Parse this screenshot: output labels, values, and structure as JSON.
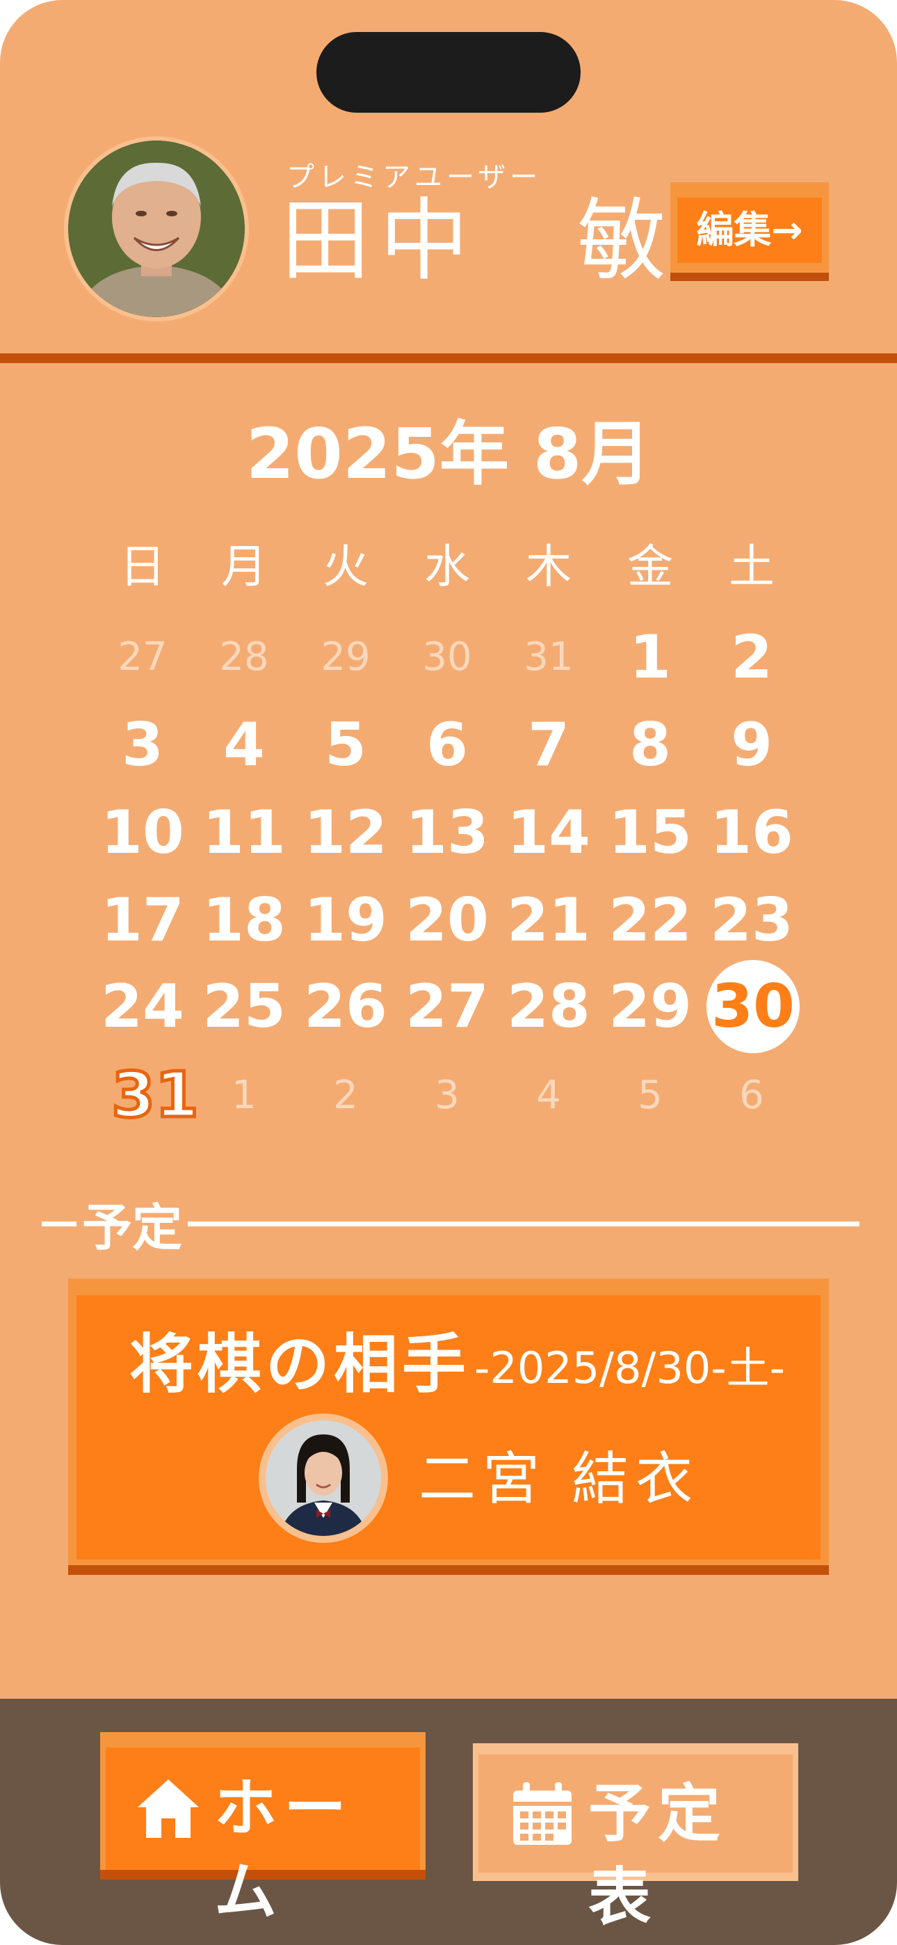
{
  "header": {
    "badge": "プレミアユーザー",
    "user_name": "田中　敏三",
    "edit_label": "編集→"
  },
  "calendar": {
    "month_title": "2025年 8月",
    "weekdays": [
      "日",
      "月",
      "火",
      "水",
      "木",
      "金",
      "土"
    ],
    "weeks": [
      [
        "27",
        "28",
        "29",
        "30",
        "31",
        "1",
        "2"
      ],
      [
        "3",
        "4",
        "5",
        "6",
        "7",
        "8",
        "9"
      ],
      [
        "10",
        "11",
        "12",
        "13",
        "14",
        "15",
        "16"
      ],
      [
        "17",
        "18",
        "19",
        "20",
        "21",
        "22",
        "23"
      ],
      [
        "24",
        "25",
        "26",
        "27",
        "28",
        "29",
        "30"
      ],
      [
        "31",
        "1",
        "2",
        "3",
        "4",
        "5",
        "6"
      ]
    ],
    "selected_day": "30",
    "today_marker": "31"
  },
  "schedule": {
    "section_label": "予定",
    "event_title": "将棋の相手",
    "event_date": "-2025/8/30-土-",
    "partner_name": "二宮 結衣"
  },
  "nav": {
    "home_label": "ホーム",
    "schedule_label": "予定表"
  },
  "colors": {
    "background": "#F4AB72",
    "accent": "#FE7F17",
    "accent_dark": "#C4500B",
    "nav_bar": "#6B5645"
  }
}
